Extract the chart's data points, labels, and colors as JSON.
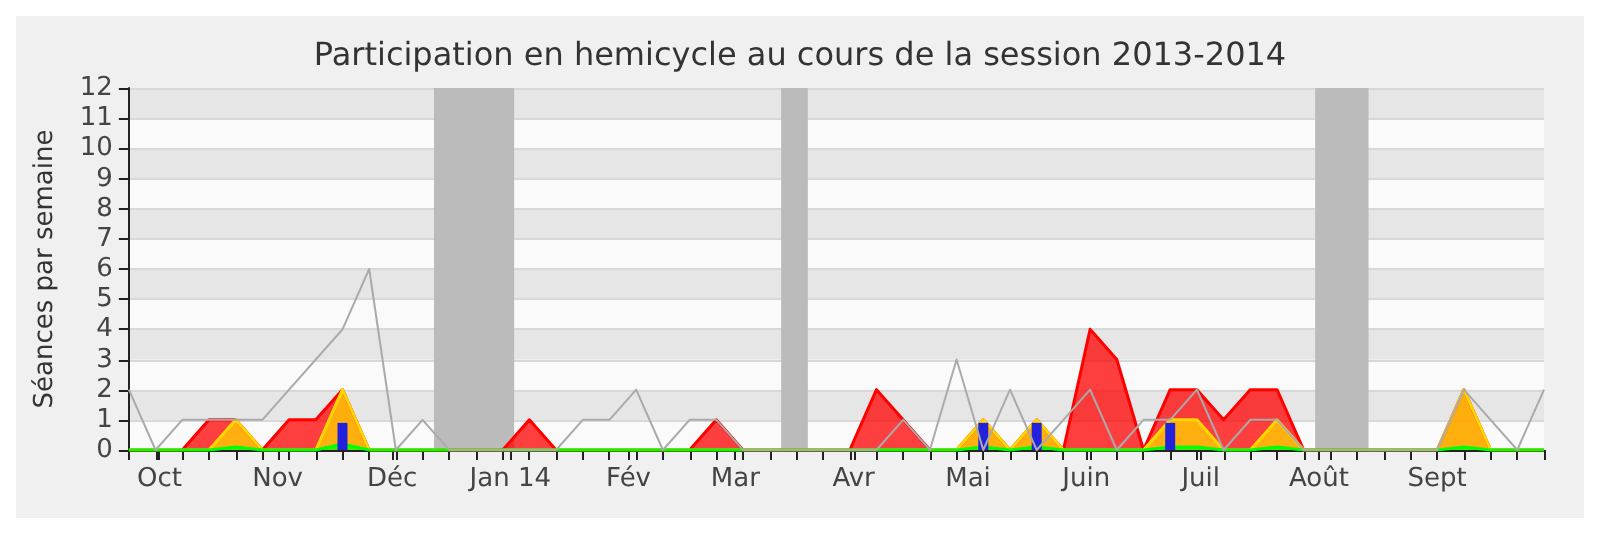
{
  "chart_data": {
    "type": "area",
    "title": "Participation en hemicycle au cours de la session 2013-2014",
    "ylabel": "Séances par semaine",
    "x": [
      "2013-09-23",
      "2013-09-30",
      "2013-10-07",
      "2013-10-14",
      "2013-10-21",
      "2013-10-28",
      "2013-11-04",
      "2013-11-11",
      "2013-11-18",
      "2013-11-25",
      "2013-12-02",
      "2013-12-09",
      "2013-12-16",
      "2013-12-23",
      "2013-12-30",
      "2014-01-06",
      "2014-01-13",
      "2014-01-20",
      "2014-01-27",
      "2014-02-03",
      "2014-02-10",
      "2014-02-17",
      "2014-02-24",
      "2014-03-03",
      "2014-03-10",
      "2014-03-17",
      "2014-03-24",
      "2014-03-31",
      "2014-04-07",
      "2014-04-14",
      "2014-04-21",
      "2014-04-28",
      "2014-05-05",
      "2014-05-12",
      "2014-05-19",
      "2014-05-26",
      "2014-06-02",
      "2014-06-09",
      "2014-06-16",
      "2014-06-23",
      "2014-06-30",
      "2014-07-07",
      "2014-07-14",
      "2014-07-21",
      "2014-07-28",
      "2014-08-04",
      "2014-08-11",
      "2014-08-18",
      "2014-08-25",
      "2014-09-01",
      "2014-09-08",
      "2014-09-15",
      "2014-09-22",
      "2014-09-29"
    ],
    "series": [
      {
        "type": "line",
        "color": "#aaaaaa",
        "values": [
          2,
          0,
          1,
          1,
          1,
          1,
          2,
          3,
          4,
          6,
          0,
          1,
          0,
          0,
          0,
          0,
          0,
          1,
          1,
          2,
          0,
          1,
          1,
          0,
          0,
          0,
          0,
          0,
          0,
          1,
          0,
          3,
          0,
          2,
          0,
          1,
          2,
          0,
          1,
          1,
          2,
          0,
          1,
          1,
          0,
          0,
          0,
          0,
          0,
          0,
          2,
          1,
          0,
          2
        ]
      },
      {
        "color": "#ff0000",
        "values": [
          0,
          0,
          0,
          1,
          1,
          0,
          1,
          1,
          2,
          0,
          0,
          0,
          0,
          0,
          0,
          1,
          0,
          0,
          0,
          0,
          0,
          0,
          1,
          0,
          0,
          0,
          0,
          0,
          2,
          1,
          0,
          0,
          1,
          0,
          1,
          0,
          4,
          3,
          0,
          2,
          2,
          1,
          2,
          2,
          0,
          0,
          0,
          0,
          0,
          0,
          2,
          0,
          0,
          0
        ]
      },
      {
        "color": "#ffd700",
        "values": [
          0,
          0,
          0,
          0,
          1,
          0,
          0,
          0,
          2,
          0,
          0,
          0,
          0,
          0,
          0,
          0,
          0,
          0,
          0,
          0,
          0,
          0,
          0,
          0,
          0,
          0,
          0,
          0,
          0,
          0,
          0,
          0,
          1,
          0,
          1,
          0,
          0,
          0,
          0,
          1,
          1,
          0,
          0,
          1,
          0,
          0,
          0,
          0,
          0,
          0,
          2,
          0,
          0,
          0
        ]
      },
      {
        "color": "#00ff00",
        "values": [
          0,
          0,
          0,
          0,
          0.1,
          0,
          0,
          0,
          0.2,
          0,
          0,
          0,
          0,
          0,
          0,
          0,
          0,
          0,
          0,
          0,
          0,
          0,
          0,
          0,
          0,
          0,
          0,
          0,
          0,
          0,
          0,
          0,
          0.1,
          0,
          0.1,
          0,
          0,
          0,
          0,
          0.1,
          0.1,
          0,
          0,
          0.1,
          0,
          0,
          0,
          0,
          0,
          0,
          0.1,
          0,
          0,
          0
        ]
      },
      {
        "type": "bar",
        "color": "#2222dd",
        "values": [
          null,
          null,
          null,
          null,
          null,
          null,
          null,
          null,
          0.9,
          null,
          null,
          null,
          null,
          null,
          null,
          null,
          null,
          null,
          null,
          null,
          null,
          null,
          null,
          null,
          null,
          null,
          null,
          null,
          null,
          null,
          null,
          null,
          0.9,
          null,
          0.9,
          null,
          null,
          null,
          null,
          0.9,
          null,
          null,
          null,
          null,
          null,
          null,
          null,
          null,
          null,
          null,
          null,
          null,
          null,
          null
        ]
      }
    ],
    "xlim": [
      "2013-09-23",
      "2014-09-29"
    ],
    "xticks": [
      {
        "value": "2013-09-23",
        "label": null
      },
      {
        "value": "2013-09-30",
        "label": null
      },
      {
        "value": "2013-10-01",
        "label": "Oct"
      },
      {
        "value": "2013-10-07",
        "label": null
      },
      {
        "value": "2013-10-14",
        "label": null
      },
      {
        "value": "2013-10-21",
        "label": null
      },
      {
        "value": "2013-10-28",
        "label": null
      },
      {
        "value": "2013-11-01",
        "label": "Nov"
      },
      {
        "value": "2013-11-04",
        "label": null
      },
      {
        "value": "2013-11-11",
        "label": null
      },
      {
        "value": "2013-11-18",
        "label": null
      },
      {
        "value": "2013-11-25",
        "label": null
      },
      {
        "value": "2013-12-02",
        "label": null
      },
      {
        "value": "2013-12-01",
        "label": "Déc"
      },
      {
        "value": "2013-12-09",
        "label": null
      },
      {
        "value": "2013-12-16",
        "label": null
      },
      {
        "value": "2013-12-23",
        "label": null
      },
      {
        "value": "2013-12-30",
        "label": null
      },
      {
        "value": "2014-01-01",
        "label": "Jan 14"
      },
      {
        "value": "2014-01-06",
        "label": null
      },
      {
        "value": "2014-01-13",
        "label": null
      },
      {
        "value": "2014-01-20",
        "label": null
      },
      {
        "value": "2014-01-27",
        "label": null
      },
      {
        "value": "2014-02-01",
        "label": "Fév"
      },
      {
        "value": "2014-02-03",
        "label": null
      },
      {
        "value": "2014-02-10",
        "label": null
      },
      {
        "value": "2014-02-17",
        "label": null
      },
      {
        "value": "2014-02-24",
        "label": null
      },
      {
        "value": "2014-03-01",
        "label": "Mar"
      },
      {
        "value": "2014-03-03",
        "label": null
      },
      {
        "value": "2014-03-10",
        "label": null
      },
      {
        "value": "2014-03-17",
        "label": null
      },
      {
        "value": "2014-03-24",
        "label": null
      },
      {
        "value": "2014-03-31",
        "label": null
      },
      {
        "value": "2014-04-01",
        "label": "Avr"
      },
      {
        "value": "2014-04-07",
        "label": null
      },
      {
        "value": "2014-04-14",
        "label": null
      },
      {
        "value": "2014-04-21",
        "label": null
      },
      {
        "value": "2014-04-28",
        "label": null
      },
      {
        "value": "2014-05-01",
        "label": "Mai"
      },
      {
        "value": "2014-05-05",
        "label": null
      },
      {
        "value": "2014-05-12",
        "label": null
      },
      {
        "value": "2014-05-19",
        "label": null
      },
      {
        "value": "2014-05-26",
        "label": null
      },
      {
        "value": "2014-06-01",
        "label": "Juin"
      },
      {
        "value": "2014-06-02",
        "label": null
      },
      {
        "value": "2014-06-09",
        "label": null
      },
      {
        "value": "2014-06-16",
        "label": null
      },
      {
        "value": "2014-06-23",
        "label": null
      },
      {
        "value": "2014-06-30",
        "label": null
      },
      {
        "value": "2014-07-01",
        "label": "Juil"
      },
      {
        "value": "2014-07-07",
        "label": null
      },
      {
        "value": "2014-07-14",
        "label": null
      },
      {
        "value": "2014-07-21",
        "label": null
      },
      {
        "value": "2014-07-28",
        "label": null
      },
      {
        "value": "2014-08-01",
        "label": "Août"
      },
      {
        "value": "2014-08-04",
        "label": null
      },
      {
        "value": "2014-08-11",
        "label": null
      },
      {
        "value": "2014-08-18",
        "label": null
      },
      {
        "value": "2014-08-25",
        "label": null
      },
      {
        "value": "2014-09-01",
        "label": "Sept"
      },
      {
        "value": "2014-09-08",
        "label": null
      },
      {
        "value": "2014-09-15",
        "label": null
      },
      {
        "value": "2014-09-22",
        "label": null
      },
      {
        "value": "2014-09-29",
        "label": null
      }
    ],
    "ylim": [
      0,
      12
    ],
    "yticks": [
      0,
      1,
      2,
      3,
      4,
      5,
      6,
      7,
      8,
      9,
      10,
      11,
      12
    ],
    "grid": "y",
    "bands": [
      {
        "axis": "x",
        "from": "2013-12-12",
        "to": "2014-01-02",
        "color": "#bbbbbb"
      },
      {
        "axis": "x",
        "from": "2014-03-13",
        "to": "2014-03-20",
        "color": "#bbbbbb"
      },
      {
        "axis": "x",
        "from": "2014-07-31",
        "to": "2014-08-14",
        "color": "#bbbbbb"
      }
    ]
  }
}
